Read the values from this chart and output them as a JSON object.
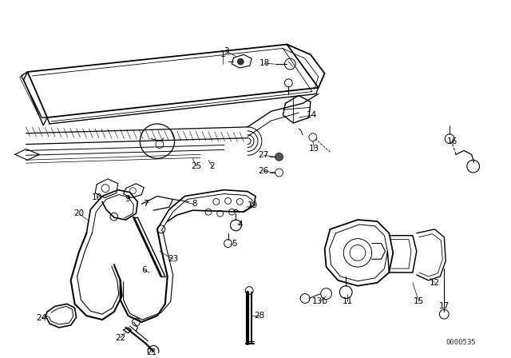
{
  "bg_color": "#ffffff",
  "line_color": "#000000",
  "fig_width": 6.4,
  "fig_height": 4.48,
  "dpi": 100,
  "catalog_num": "0000535"
}
